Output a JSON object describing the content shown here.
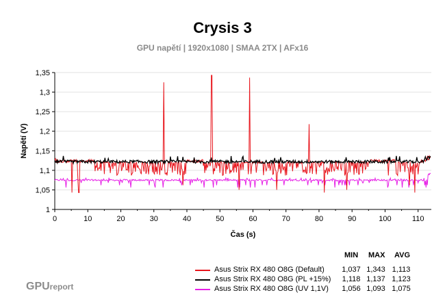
{
  "chart_data": {
    "type": "line",
    "title": "Crysis 3",
    "subtitle": "GPU napětí | 1920x1080 | SMAA 2TX | AFx16",
    "xlabel": "Čas (s)",
    "ylabel": "Napětí (V)",
    "xlim": [
      0,
      114
    ],
    "ylim": [
      1,
      1.35
    ],
    "x_ticks": [
      "0",
      "10",
      "20",
      "30",
      "40",
      "50",
      "60",
      "70",
      "80",
      "90",
      "100",
      "110"
    ],
    "y_ticks": [
      "1",
      "1,05",
      "1,1",
      "1,15",
      "1,2",
      "1,25",
      "1,3",
      "1,35"
    ],
    "series": [
      {
        "name": "Asus Strix RX 480 O8G (Default)",
        "color": "#e8141b",
        "min": "1,037",
        "max": "1,343",
        "avg": "1,113",
        "baseline": 1.118,
        "dip_values": [
          1.087,
          1.075,
          1.062,
          1.05,
          1.043,
          1.037
        ],
        "spikes": [
          [
            33,
            1.325
          ],
          [
            47.5,
            1.343
          ],
          [
            59,
            1.337
          ],
          [
            77,
            1.218
          ]
        ]
      },
      {
        "name": "Asus Strix RX 480 O8G (PL +15%)",
        "color": "#000000",
        "min": "1,118",
        "max": "1,137",
        "avg": "1,123",
        "baseline": 1.122,
        "range": [
          1.118,
          1.137
        ]
      },
      {
        "name": "Asus Strix RX 480 O8G (UV 1,1V)",
        "color": "#e61ee6",
        "min": "1,056",
        "max": "1,093",
        "avg": "1,075",
        "baseline": 1.075,
        "dip_values": [
          1.068,
          1.062,
          1.056
        ],
        "range": [
          1.056,
          1.093
        ]
      }
    ],
    "legend": {
      "position": "bottom-right",
      "headers": {
        "min": "MIN",
        "max": "MAX",
        "avg": "AVG"
      }
    }
  },
  "brand": {
    "main": "GPU",
    "sub": "report"
  }
}
